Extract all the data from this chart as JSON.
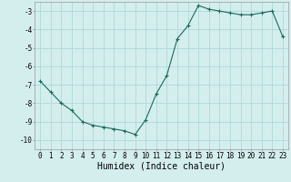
{
  "x": [
    0,
    1,
    2,
    3,
    4,
    5,
    6,
    7,
    8,
    9,
    10,
    11,
    12,
    13,
    14,
    15,
    16,
    17,
    18,
    19,
    20,
    21,
    22,
    23
  ],
  "y": [
    -6.8,
    -7.4,
    -8.0,
    -8.4,
    -9.0,
    -9.2,
    -9.3,
    -9.4,
    -9.5,
    -9.7,
    -8.9,
    -7.5,
    -6.5,
    -4.5,
    -3.8,
    -2.7,
    -2.9,
    -3.0,
    -3.1,
    -3.2,
    -3.2,
    -3.1,
    -3.0,
    -4.4
  ],
  "line_color": "#1a6b5a",
  "marker_color": "#1a6b5a",
  "bg_color": "#d4eeee",
  "grid_color": "#b0d8d8",
  "xlabel": "Humidex (Indice chaleur)",
  "ylim": [
    -10.5,
    -2.5
  ],
  "yticks": [
    -10,
    -9,
    -8,
    -7,
    -6,
    -5,
    -4,
    -3
  ],
  "xticks": [
    0,
    1,
    2,
    3,
    4,
    5,
    6,
    7,
    8,
    9,
    10,
    11,
    12,
    13,
    14,
    15,
    16,
    17,
    18,
    19,
    20,
    21,
    22,
    23
  ],
  "tick_fontsize": 5.5,
  "xlabel_fontsize": 7.0
}
